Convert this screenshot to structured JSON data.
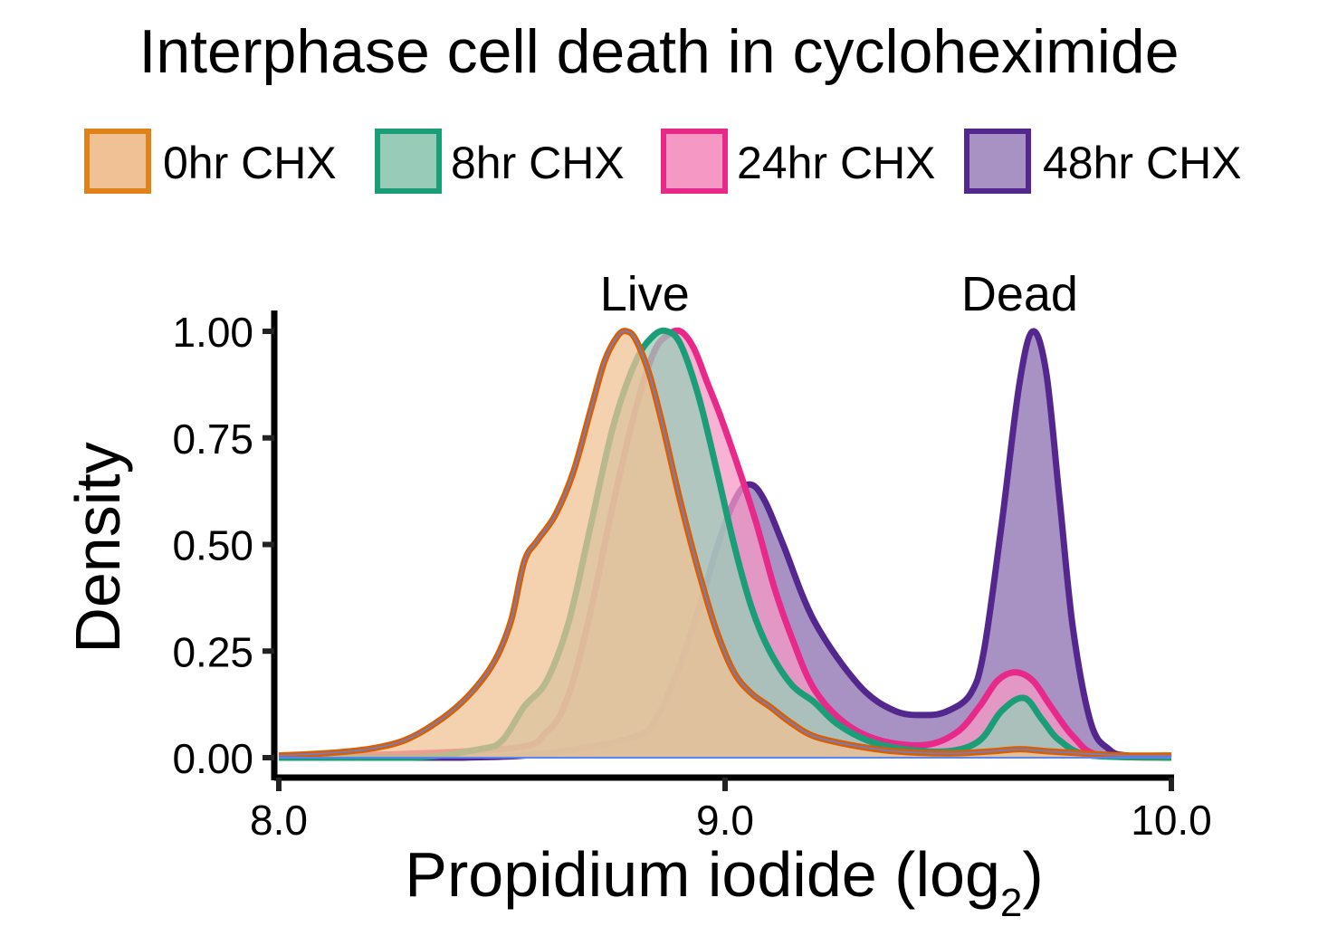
{
  "chart_data": {
    "type": "area",
    "title": "Interphase cell death in cycloheximide",
    "xlabel": "Propidium iodide (log",
    "xlabel_subscript": "2",
    "xlabel_close": ")",
    "ylabel": "Density",
    "xlim": [
      8.0,
      10.0
    ],
    "ylim": [
      0.0,
      1.0
    ],
    "xticks": [
      8.0,
      9.0,
      10.0
    ],
    "xtick_labels": [
      "8.0",
      "9.0",
      "10.0"
    ],
    "yticks": [
      0.0,
      0.25,
      0.5,
      0.75,
      1.0
    ],
    "ytick_labels": [
      "0.00",
      "0.25",
      "0.50",
      "0.75",
      "1.00"
    ],
    "grid": false,
    "legend_position": "top",
    "annotations": [
      {
        "text": "Live",
        "x": 8.82,
        "y": 1.08
      },
      {
        "text": "Dead",
        "x": 9.66,
        "y": 1.08
      }
    ],
    "series": [
      {
        "name": "48hr CHX",
        "stroke": "#54278f",
        "fill": "#a892c4",
        "x": [
          8.0,
          8.4,
          8.6,
          8.8,
          8.85,
          8.9,
          8.95,
          8.99,
          9.03,
          9.06,
          9.09,
          9.13,
          9.2,
          9.3,
          9.38,
          9.45,
          9.5,
          9.55,
          9.58,
          9.62,
          9.66,
          9.69,
          9.72,
          9.75,
          9.78,
          9.82,
          9.86,
          9.9,
          10.0
        ],
        "y": [
          0.0,
          0.0,
          0.01,
          0.05,
          0.1,
          0.22,
          0.38,
          0.52,
          0.62,
          0.64,
          0.6,
          0.5,
          0.32,
          0.17,
          0.11,
          0.1,
          0.11,
          0.15,
          0.25,
          0.55,
          0.88,
          1.0,
          0.9,
          0.6,
          0.3,
          0.08,
          0.02,
          0.005,
          0.0
        ]
      },
      {
        "name": "24hr CHX",
        "stroke": "#e7298a",
        "fill": "#f598c4",
        "x": [
          8.0,
          8.5,
          8.6,
          8.65,
          8.7,
          8.75,
          8.8,
          8.84,
          8.87,
          8.9,
          8.93,
          8.96,
          8.99,
          9.03,
          9.07,
          9.11,
          9.15,
          9.2,
          9.27,
          9.35,
          9.45,
          9.52,
          9.57,
          9.61,
          9.65,
          9.69,
          9.73,
          9.78,
          9.84,
          10.0
        ],
        "y": [
          0.0,
          0.02,
          0.06,
          0.15,
          0.35,
          0.6,
          0.82,
          0.95,
          0.99,
          1.0,
          0.96,
          0.88,
          0.8,
          0.68,
          0.55,
          0.4,
          0.28,
          0.16,
          0.08,
          0.04,
          0.03,
          0.06,
          0.12,
          0.18,
          0.2,
          0.18,
          0.12,
          0.05,
          0.005,
          0.0
        ]
      },
      {
        "name": "8hr CHX",
        "stroke": "#1b9e77",
        "fill": "#98ccb8",
        "x": [
          8.0,
          8.3,
          8.45,
          8.5,
          8.55,
          8.6,
          8.65,
          8.7,
          8.75,
          8.8,
          8.84,
          8.87,
          8.9,
          8.94,
          8.98,
          9.02,
          9.06,
          9.1,
          9.15,
          9.2,
          9.25,
          9.32,
          9.4,
          9.5,
          9.57,
          9.62,
          9.67,
          9.71,
          9.75,
          9.82,
          10.0
        ],
        "y": [
          0.0,
          0.0,
          0.02,
          0.04,
          0.12,
          0.18,
          0.32,
          0.55,
          0.78,
          0.93,
          0.99,
          1.0,
          0.97,
          0.85,
          0.68,
          0.5,
          0.35,
          0.25,
          0.17,
          0.13,
          0.08,
          0.04,
          0.02,
          0.015,
          0.04,
          0.11,
          0.14,
          0.09,
          0.04,
          0.005,
          0.0
        ]
      },
      {
        "name": "0hr CHX",
        "stroke": "#d95f02",
        "fill": "#f0c194",
        "x": [
          8.0,
          8.1,
          8.2,
          8.28,
          8.35,
          8.42,
          8.48,
          8.52,
          8.55,
          8.58,
          8.62,
          8.66,
          8.7,
          8.73,
          8.76,
          8.78,
          8.8,
          8.83,
          8.86,
          8.9,
          8.94,
          8.98,
          9.02,
          9.06,
          9.1,
          9.15,
          9.2,
          9.28,
          9.38,
          9.5,
          9.6,
          9.66,
          9.72,
          9.8,
          9.9,
          10.0
        ],
        "y": [
          0.005,
          0.01,
          0.02,
          0.04,
          0.08,
          0.14,
          0.22,
          0.32,
          0.46,
          0.51,
          0.57,
          0.67,
          0.82,
          0.93,
          0.99,
          1.0,
          0.98,
          0.9,
          0.78,
          0.6,
          0.44,
          0.3,
          0.2,
          0.15,
          0.12,
          0.08,
          0.05,
          0.03,
          0.015,
          0.01,
          0.015,
          0.02,
          0.015,
          0.01,
          0.005,
          0.005
        ]
      }
    ],
    "legend": [
      {
        "label": "0hr CHX",
        "stroke": "#e0821a",
        "fill": "#f0c194"
      },
      {
        "label": "8hr CHX",
        "stroke": "#1b9e77",
        "fill": "#98ccb8"
      },
      {
        "label": "24hr CHX",
        "stroke": "#e7298a",
        "fill": "#f598c4"
      },
      {
        "label": "48hr CHX",
        "stroke": "#54278f",
        "fill": "#a892c4"
      }
    ]
  }
}
